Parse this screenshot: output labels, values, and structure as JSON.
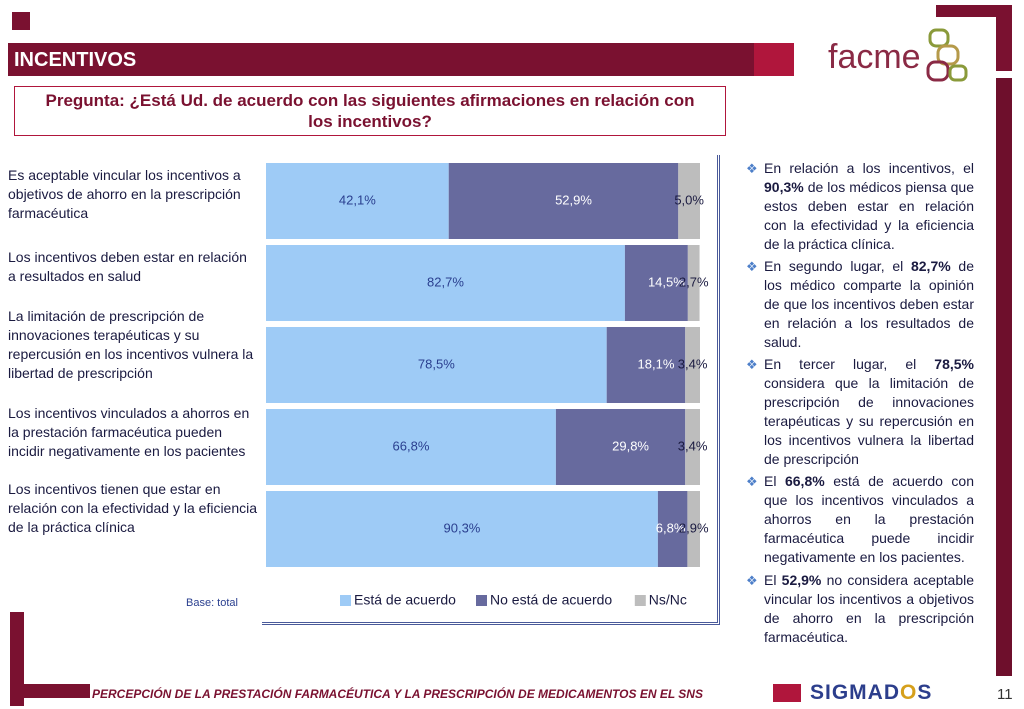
{
  "header": {
    "section_title": "INCENTIVOS",
    "question": "Pregunta: ¿Está Ud. de acuerdo con las siguientes afirmaciones en relación con los incentivos?",
    "logo_text": "facme"
  },
  "statements": [
    "Es aceptable vincular los incentivos a objetivos de ahorro en la prescripción farmacéutica",
    "Los incentivos deben estar en relación a resultados en salud",
    "La limitación de prescripción de innovaciones terapéuticas y su repercusión en los incentivos vulnera la libertad de prescripción",
    "Los incentivos vinculados a ahorros en la prestación farmacéutica pueden incidir negativamente en los pacientes",
    "Los incentivos tienen que estar en relación con la efectividad y la eficiencia de la práctica clínica"
  ],
  "chart_data": {
    "type": "bar",
    "orientation": "horizontal",
    "stacked": true,
    "categories": [
      "Es aceptable vincular los incentivos a objetivos de ahorro en la prescripción farmacéutica",
      "Los incentivos deben estar en relación a resultados en salud",
      "La limitación de prescripción de innovaciones terapéuticas y su repercusión en los incentivos vulnera la libertad de prescripción",
      "Los incentivos vinculados a ahorros en la prestación farmacéutica pueden incidir negativamente en los pacientes",
      "Los incentivos tienen que estar en relación con la efectividad y la eficiencia de la práctica clínica"
    ],
    "series": [
      {
        "name": "Está de acuerdo",
        "color": "#9ecbf6",
        "values": [
          42.1,
          82.7,
          78.5,
          66.8,
          90.3
        ],
        "labels": [
          "42,1%",
          "82,7%",
          "78,5%",
          "66,8%",
          "90,3%"
        ]
      },
      {
        "name": "No está de acuerdo",
        "color": "#676a9e",
        "values": [
          52.9,
          14.5,
          18.1,
          29.8,
          6.8
        ],
        "labels": [
          "52,9%",
          "14,5%",
          "18,1%",
          "29,8%",
          "6,8%"
        ]
      },
      {
        "name": "Ns/Nc",
        "color": "#bdbdbd",
        "values": [
          5.0,
          2.7,
          3.4,
          3.4,
          2.9
        ],
        "labels": [
          "5,0%",
          "2,7%",
          "3,4%",
          "3,4%",
          "2,9%"
        ]
      }
    ],
    "xlim": [
      0,
      100
    ],
    "legend_position": "bottom",
    "base_note": "Base: total"
  },
  "bullets": [
    [
      {
        "t": "En relación a los incentivos, el ",
        "b": false
      },
      {
        "t": "90,3%",
        "b": true
      },
      {
        "t": " de los médicos piensa que estos deben estar en relación con la efectividad y la eficiencia de la práctica clínica.",
        "b": false
      }
    ],
    [
      {
        "t": "En segundo lugar, el ",
        "b": false
      },
      {
        "t": "82,7%",
        "b": true
      },
      {
        "t": " de los médico comparte la opinión de que los incentivos deben estar en relación a los resultados de salud.",
        "b": false
      }
    ],
    [
      {
        "t": "En tercer lugar, el ",
        "b": false
      },
      {
        "t": "78,5%",
        "b": true
      },
      {
        "t": " considera que la limitación de prescripción de innovaciones terapéuticas y su repercusión en los incentivos vulnera la libertad de prescripción",
        "b": false
      }
    ],
    [
      {
        "t": "El ",
        "b": false
      },
      {
        "t": "66,8%",
        "b": true
      },
      {
        "t": " está de acuerdo con que los incentivos vinculados a ahorros en la prestación farmacéutica puede incidir negativamente en los pacientes.",
        "b": false
      }
    ],
    [
      {
        "t": "El ",
        "b": false
      },
      {
        "t": "52,9%",
        "b": true
      },
      {
        "t": " no considera aceptable vincular los incentivos a objetivos de ahorro en la prescripción farmacéutica.",
        "b": false
      }
    ]
  ],
  "footer": {
    "text": "PERCEPCIÓN DE LA PRESTACIÓN FARMACÉUTICA Y LA PRESCRIPCIÓN DE MEDICAMENTOS EN EL SNS",
    "brand_part1": "SIGMAD",
    "brand_o": "O",
    "brand_part2": "S",
    "page_number": "11"
  }
}
